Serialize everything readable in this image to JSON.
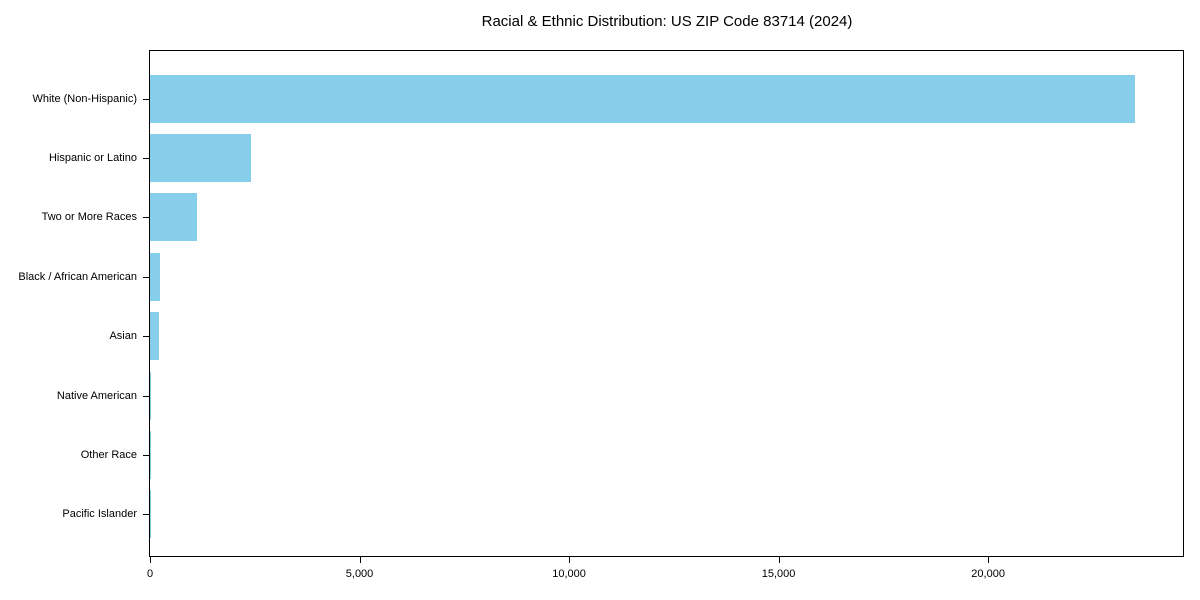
{
  "chart_data": {
    "type": "bar",
    "orientation": "horizontal",
    "title": "Racial & Ethnic Distribution: US ZIP Code 83714 (2024)",
    "categories": [
      "White (Non-Hispanic)",
      "Hispanic or Latino",
      "Two or More Races",
      "Black / African American",
      "Asian",
      "Native American",
      "Other Race",
      "Pacific Islander"
    ],
    "values": [
      23500,
      2400,
      1130,
      230,
      215,
      20,
      15,
      5
    ],
    "xlabel": "",
    "ylabel": "",
    "xlim": [
      0,
      24650
    ],
    "xticks": {
      "values": [
        0,
        5000,
        10000,
        15000,
        20000
      ],
      "labels": [
        "0",
        "5,000",
        "10,000",
        "15,000",
        "20,000"
      ]
    },
    "bar_color": "#87CEEB",
    "frame_color": "#000000",
    "background_color": "#ffffff",
    "grid": false,
    "legend": "none"
  }
}
